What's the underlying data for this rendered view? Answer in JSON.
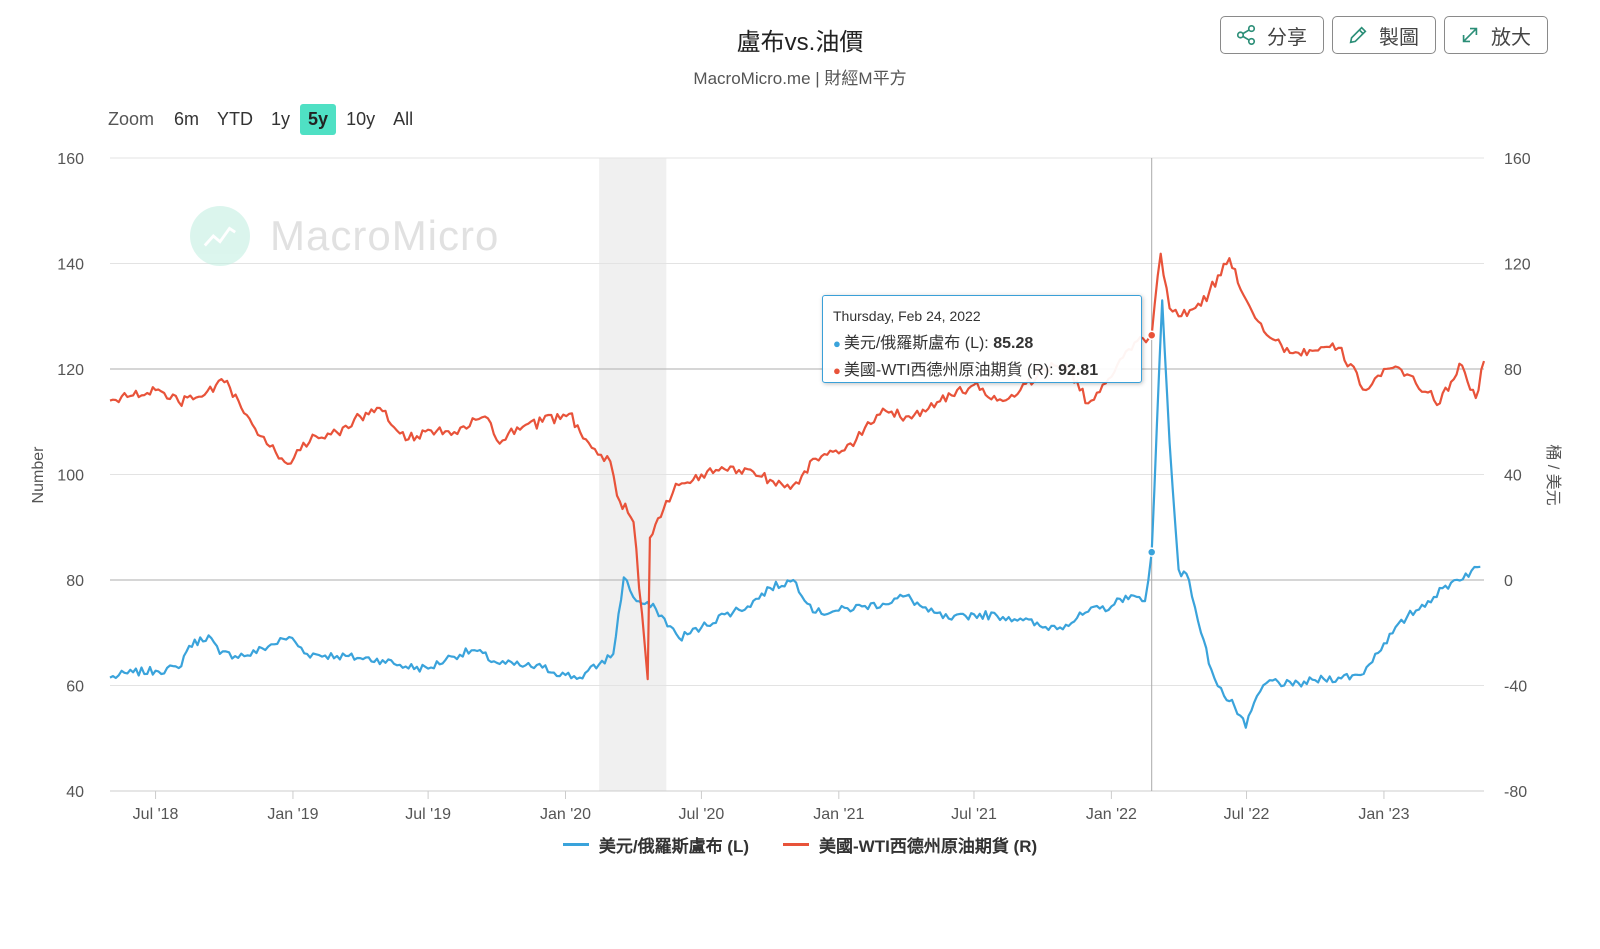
{
  "header": {
    "title": "盧布vs.油價",
    "subtitle": "MacroMicro.me | 財經M平方"
  },
  "actions": [
    {
      "label": "分享",
      "icon": "share-icon"
    },
    {
      "label": "製圖",
      "icon": "pencil-icon"
    },
    {
      "label": "放大",
      "icon": "expand-icon"
    }
  ],
  "zoom": {
    "label": "Zoom",
    "options": [
      "6m",
      "YTD",
      "1y",
      "5y",
      "10y",
      "All"
    ],
    "active": "5y"
  },
  "watermark": {
    "text": "MacroMicro"
  },
  "tooltip": {
    "date": "Thursday, Feb 24, 2022",
    "rows": [
      {
        "label": "美元/俄羅斯盧布 (L): ",
        "value": "85.28",
        "color": "#3aa3db"
      },
      {
        "label": "美國-WTI西德州原油期貨 (R): ",
        "value": "92.81",
        "color": "#e8533a"
      }
    ]
  },
  "chart_data": {
    "type": "line",
    "x_range": [
      "2018-05-01",
      "2023-05-15"
    ],
    "x_ticks": [
      "Jul '18",
      "Jan '19",
      "Jul '19",
      "Jan '20",
      "Jul '20",
      "Jan '21",
      "Jul '21",
      "Jan '22",
      "Jul '22",
      "Jan '23"
    ],
    "y_left": {
      "label": "Number",
      "range": [
        40,
        160
      ],
      "ticks": [
        "160",
        "140",
        "120",
        "100",
        "80",
        "60",
        "40"
      ]
    },
    "y_right": {
      "label": "桶 / 美元",
      "range": [
        -80,
        160
      ],
      "ticks": [
        "160",
        "120",
        "80",
        "40",
        "0",
        "-40",
        "-80"
      ]
    },
    "recession_band": {
      "start": "2020-02-15",
      "end": "2020-05-15"
    },
    "crosshair_date": "2022-02-24",
    "grid": true,
    "legend_position": "bottom",
    "series": [
      {
        "name": "美元/俄羅斯盧布 (L)",
        "axis": "left",
        "color": "#3aa3db",
        "points": [
          [
            "2018-05-01",
            61.5
          ],
          [
            "2018-06-01",
            62.5
          ],
          [
            "2018-07-01",
            62.8
          ],
          [
            "2018-08-01",
            63.3
          ],
          [
            "2018-08-15",
            67.5
          ],
          [
            "2018-09-10",
            69.5
          ],
          [
            "2018-09-25",
            66.0
          ],
          [
            "2018-11-01",
            65.7
          ],
          [
            "2018-12-27",
            69.2
          ],
          [
            "2019-01-20",
            66.0
          ],
          [
            "2019-03-01",
            65.6
          ],
          [
            "2019-04-01",
            65.2
          ],
          [
            "2019-05-01",
            64.8
          ],
          [
            "2019-06-01",
            63.6
          ],
          [
            "2019-07-01",
            63.2
          ],
          [
            "2019-08-01",
            65.5
          ],
          [
            "2019-09-01",
            66.7
          ],
          [
            "2019-10-01",
            64.3
          ],
          [
            "2019-11-01",
            63.8
          ],
          [
            "2019-12-01",
            63.4
          ],
          [
            "2020-01-01",
            62.0
          ],
          [
            "2020-01-20",
            61.5
          ],
          [
            "2020-02-15",
            64.0
          ],
          [
            "2020-03-05",
            66.0
          ],
          [
            "2020-03-19",
            80.5
          ],
          [
            "2020-04-05",
            76.0
          ],
          [
            "2020-05-01",
            74.5
          ],
          [
            "2020-06-01",
            69.0
          ],
          [
            "2020-07-01",
            71.0
          ],
          [
            "2020-08-01",
            73.5
          ],
          [
            "2020-09-01",
            75.0
          ],
          [
            "2020-10-01",
            78.5
          ],
          [
            "2020-11-01",
            80.0
          ],
          [
            "2020-12-01",
            73.8
          ],
          [
            "2021-01-01",
            74.2
          ],
          [
            "2021-02-01",
            75.0
          ],
          [
            "2021-03-01",
            75.5
          ],
          [
            "2021-04-01",
            77.0
          ],
          [
            "2021-05-01",
            74.0
          ],
          [
            "2021-06-01",
            72.5
          ],
          [
            "2021-07-01",
            73.5
          ],
          [
            "2021-08-01",
            73.2
          ],
          [
            "2021-09-01",
            72.7
          ],
          [
            "2021-10-01",
            71.0
          ],
          [
            "2021-11-01",
            71.5
          ],
          [
            "2021-12-01",
            74.0
          ],
          [
            "2022-01-01",
            75.0
          ],
          [
            "2022-01-20",
            77.0
          ],
          [
            "2022-02-15",
            76.0
          ],
          [
            "2022-02-24",
            85.28
          ],
          [
            "2022-03-10",
            133.0
          ],
          [
            "2022-03-20",
            106.0
          ],
          [
            "2022-04-01",
            82.0
          ],
          [
            "2022-04-15",
            80.0
          ],
          [
            "2022-05-01",
            70.0
          ],
          [
            "2022-05-15",
            63.0
          ],
          [
            "2022-06-01",
            58.0
          ],
          [
            "2022-06-15",
            56.0
          ],
          [
            "2022-06-30",
            52.0
          ],
          [
            "2022-07-15",
            58.0
          ],
          [
            "2022-08-01",
            61.0
          ],
          [
            "2022-09-01",
            60.0
          ],
          [
            "2022-10-01",
            61.0
          ],
          [
            "2022-11-01",
            61.5
          ],
          [
            "2022-12-01",
            62.0
          ],
          [
            "2023-01-01",
            68.0
          ],
          [
            "2023-02-01",
            73.0
          ],
          [
            "2023-03-01",
            76.0
          ],
          [
            "2023-04-01",
            79.5
          ],
          [
            "2023-05-10",
            82.5
          ]
        ]
      },
      {
        "name": "美國-WTI西德州原油期貨 (R)",
        "axis": "right",
        "color": "#e8533a",
        "points": [
          [
            "2018-05-01",
            68.0
          ],
          [
            "2018-06-01",
            70.0
          ],
          [
            "2018-07-01",
            72.0
          ],
          [
            "2018-08-01",
            67.5
          ],
          [
            "2018-09-01",
            69.5
          ],
          [
            "2018-10-01",
            75.0
          ],
          [
            "2018-10-20",
            68.0
          ],
          [
            "2018-11-15",
            55.0
          ],
          [
            "2018-12-25",
            44.0
          ],
          [
            "2019-01-15",
            52.0
          ],
          [
            "2019-03-01",
            56.0
          ],
          [
            "2019-04-01",
            62.0
          ],
          [
            "2019-05-01",
            64.0
          ],
          [
            "2019-06-01",
            53.0
          ],
          [
            "2019-07-01",
            57.0
          ],
          [
            "2019-08-01",
            55.0
          ],
          [
            "2019-09-15",
            62.0
          ],
          [
            "2019-10-01",
            53.0
          ],
          [
            "2019-11-01",
            57.0
          ],
          [
            "2019-12-01",
            60.0
          ],
          [
            "2020-01-06",
            63.0
          ],
          [
            "2020-02-01",
            52.0
          ],
          [
            "2020-03-01",
            45.0
          ],
          [
            "2020-03-10",
            32.0
          ],
          [
            "2020-04-01",
            22.0
          ],
          [
            "2020-04-20",
            -37.6
          ],
          [
            "2020-04-23",
            16.0
          ],
          [
            "2020-05-15",
            30.0
          ],
          [
            "2020-06-01",
            36.0
          ],
          [
            "2020-07-01",
            40.0
          ],
          [
            "2020-08-01",
            42.0
          ],
          [
            "2020-09-01",
            42.0
          ],
          [
            "2020-10-01",
            38.0
          ],
          [
            "2020-11-01",
            36.0
          ],
          [
            "2020-12-01",
            46.0
          ],
          [
            "2021-01-01",
            48.0
          ],
          [
            "2021-02-01",
            55.0
          ],
          [
            "2021-03-01",
            65.0
          ],
          [
            "2021-04-01",
            62.0
          ],
          [
            "2021-05-01",
            65.0
          ],
          [
            "2021-06-01",
            70.0
          ],
          [
            "2021-07-01",
            74.0
          ],
          [
            "2021-08-01",
            68.0
          ],
          [
            "2021-09-01",
            72.0
          ],
          [
            "2021-10-01",
            80.0
          ],
          [
            "2021-11-01",
            82.0
          ],
          [
            "2021-12-01",
            67.0
          ],
          [
            "2022-01-01",
            77.0
          ],
          [
            "2022-02-01",
            90.0
          ],
          [
            "2022-02-24",
            92.81
          ],
          [
            "2022-03-08",
            123.7
          ],
          [
            "2022-03-20",
            103.0
          ],
          [
            "2022-04-01",
            100.0
          ],
          [
            "2022-05-01",
            104.0
          ],
          [
            "2022-06-08",
            122.0
          ],
          [
            "2022-07-01",
            106.0
          ],
          [
            "2022-08-01",
            92.0
          ],
          [
            "2022-09-01",
            86.0
          ],
          [
            "2022-10-01",
            87.0
          ],
          [
            "2022-11-01",
            88.0
          ],
          [
            "2022-12-08",
            72.0
          ],
          [
            "2023-01-01",
            80.0
          ],
          [
            "2023-02-01",
            78.0
          ],
          [
            "2023-03-17",
            67.0
          ],
          [
            "2023-04-12",
            82.0
          ],
          [
            "2023-05-04",
            69.0
          ],
          [
            "2023-05-15",
            83.0
          ]
        ]
      }
    ]
  }
}
